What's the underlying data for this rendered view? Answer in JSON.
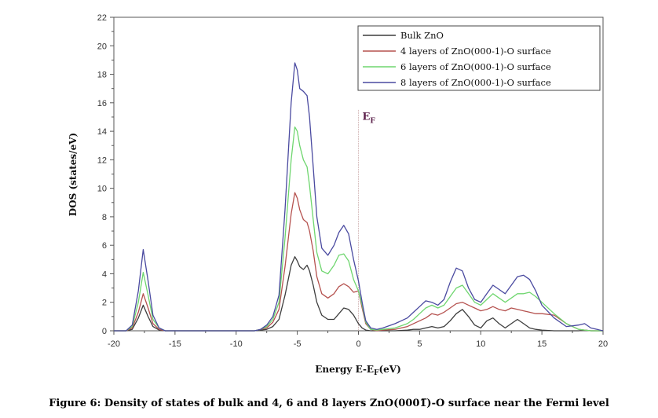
{
  "caption": "Figure 6: Density of states of bulk and 4, 6 and 8 layers ZnO(0001̅)-O surface near the Fermi level",
  "chart_data": {
    "type": "line",
    "xlabel": "Energy E-E",
    "xlabel_sub": "F",
    "xlabel_suffix": "(eV)",
    "ylabel": "DOS (states/eV)",
    "xlim": [
      -20,
      20
    ],
    "ylim": [
      0,
      22
    ],
    "x_ticks": [
      -20,
      -15,
      -10,
      -5,
      0,
      5,
      10,
      15,
      20
    ],
    "y_ticks": [
      0,
      2,
      4,
      6,
      8,
      10,
      12,
      14,
      16,
      18,
      20,
      22
    ],
    "grid": false,
    "legend_position": "top-right",
    "fermi_level": {
      "x": 0,
      "label": "E",
      "label_sub": "F",
      "color": "#d9c0c0"
    },
    "series": [
      {
        "name": "Bulk ZnO",
        "color": "#3d3d3d",
        "x": [
          -20,
          -19,
          -18.5,
          -18,
          -17.6,
          -17.2,
          -16.8,
          -16.3,
          -15.8,
          -15,
          -10,
          -8.5,
          -8,
          -7.5,
          -7,
          -6.5,
          -6,
          -5.5,
          -5.2,
          -5,
          -4.8,
          -4.5,
          -4.2,
          -4,
          -3.7,
          -3.4,
          -3,
          -2.5,
          -2,
          -1.6,
          -1.2,
          -0.8,
          -0.4,
          0,
          0.3,
          0.6,
          1,
          1.5,
          2,
          3,
          4,
          4.5,
          5,
          5.5,
          6,
          6.5,
          7,
          7.5,
          8,
          8.5,
          9,
          9.5,
          10,
          10.5,
          11,
          11.5,
          12,
          12.5,
          13,
          13.5,
          14,
          14.5,
          15,
          16,
          17,
          18,
          18.5,
          19,
          20
        ],
        "y": [
          0,
          0,
          0.1,
          0.9,
          1.8,
          1.0,
          0.3,
          0.05,
          0,
          0,
          0,
          0,
          0.05,
          0.1,
          0.3,
          0.8,
          2.5,
          4.6,
          5.2,
          4.9,
          4.5,
          4.3,
          4.6,
          4.2,
          3.2,
          2.0,
          1.1,
          0.8,
          0.8,
          1.2,
          1.6,
          1.5,
          1.1,
          0.5,
          0.2,
          0.05,
          0,
          0,
          0,
          0,
          0.05,
          0.1,
          0.1,
          0.2,
          0.3,
          0.2,
          0.3,
          0.7,
          1.2,
          1.5,
          1.0,
          0.4,
          0.2,
          0.7,
          0.9,
          0.5,
          0.2,
          0.5,
          0.8,
          0.5,
          0.2,
          0.1,
          0.05,
          0,
          0,
          0,
          0.05,
          0,
          0
        ]
      },
      {
        "name": "4 layers of ZnO(000-1)-O surface",
        "color": "#b5524f",
        "x": [
          -20,
          -19,
          -18.5,
          -18,
          -17.6,
          -17.2,
          -16.8,
          -16.3,
          -15.8,
          -15,
          -10,
          -8.5,
          -8,
          -7.5,
          -7,
          -6.5,
          -6,
          -5.5,
          -5.2,
          -5,
          -4.8,
          -4.5,
          -4.2,
          -4,
          -3.7,
          -3.4,
          -3,
          -2.5,
          -2,
          -1.6,
          -1.2,
          -0.8,
          -0.4,
          0,
          0.3,
          0.6,
          1,
          1.5,
          2,
          3,
          4,
          4.5,
          5,
          5.5,
          6,
          6.5,
          7,
          7.5,
          8,
          8.5,
          9,
          9.5,
          10,
          10.5,
          11,
          11.5,
          12,
          12.5,
          13,
          13.5,
          14,
          14.5,
          15,
          16,
          17,
          18,
          18.5,
          19,
          20
        ],
        "y": [
          0,
          0,
          0.2,
          1.3,
          2.6,
          1.6,
          0.5,
          0.1,
          0,
          0,
          0,
          0,
          0.1,
          0.2,
          0.6,
          1.5,
          4.5,
          8.2,
          9.7,
          9.3,
          8.5,
          7.8,
          7.6,
          7.0,
          5.6,
          3.8,
          2.6,
          2.3,
          2.6,
          3.1,
          3.3,
          3.1,
          2.7,
          2.8,
          1.6,
          0.5,
          0.1,
          0,
          0.05,
          0.1,
          0.3,
          0.5,
          0.7,
          0.9,
          1.2,
          1.1,
          1.3,
          1.6,
          1.9,
          2.0,
          1.8,
          1.6,
          1.4,
          1.5,
          1.7,
          1.5,
          1.4,
          1.6,
          1.5,
          1.4,
          1.3,
          1.2,
          1.2,
          1.1,
          0.5,
          0.1,
          0.05,
          0,
          0
        ]
      },
      {
        "name": "6 layers of ZnO(000-1)-O surface",
        "color": "#6fd66f",
        "x": [
          -20,
          -19,
          -18.5,
          -18,
          -17.6,
          -17.2,
          -16.8,
          -16.3,
          -15.8,
          -15,
          -10,
          -8.5,
          -8,
          -7.5,
          -7,
          -6.5,
          -6,
          -5.5,
          -5.2,
          -5,
          -4.8,
          -4.5,
          -4.2,
          -4,
          -3.7,
          -3.4,
          -3,
          -2.5,
          -2,
          -1.6,
          -1.2,
          -0.8,
          -0.4,
          0,
          0.3,
          0.6,
          1,
          1.5,
          2,
          3,
          4,
          4.5,
          5,
          5.5,
          6,
          6.5,
          7,
          7.5,
          8,
          8.5,
          9,
          9.5,
          10,
          10.5,
          11,
          11.5,
          12,
          12.5,
          13,
          13.5,
          14,
          14.5,
          15,
          16,
          17,
          18,
          18.5,
          19,
          20
        ],
        "y": [
          0,
          0,
          0.3,
          2.0,
          4.1,
          2.5,
          0.8,
          0.2,
          0,
          0,
          0,
          0,
          0.1,
          0.3,
          0.8,
          2.0,
          6.5,
          12.0,
          14.3,
          14.0,
          13.0,
          12.0,
          11.5,
          10.2,
          7.8,
          5.5,
          4.2,
          4.0,
          4.6,
          5.3,
          5.4,
          4.9,
          3.6,
          2.8,
          1.8,
          0.6,
          0.1,
          0.05,
          0.1,
          0.2,
          0.5,
          0.8,
          1.2,
          1.6,
          1.8,
          1.6,
          1.8,
          2.4,
          3.0,
          3.2,
          2.6,
          2.0,
          1.8,
          2.2,
          2.6,
          2.3,
          2.0,
          2.3,
          2.6,
          2.6,
          2.7,
          2.4,
          2.0,
          1.2,
          0.5,
          0.1,
          0.05,
          0,
          0
        ]
      },
      {
        "name": "8 layers of ZnO(000-1)-O surface",
        "color": "#4a4aa0",
        "x": [
          -20,
          -19,
          -18.5,
          -18,
          -17.6,
          -17.2,
          -16.8,
          -16.3,
          -15.8,
          -15,
          -10,
          -8.5,
          -8,
          -7.5,
          -7,
          -6.5,
          -6,
          -5.5,
          -5.2,
          -5,
          -4.8,
          -4.5,
          -4.2,
          -4,
          -3.7,
          -3.4,
          -3,
          -2.5,
          -2,
          -1.6,
          -1.2,
          -0.8,
          -0.4,
          0,
          0.3,
          0.6,
          1,
          1.5,
          2,
          3,
          4,
          4.5,
          5,
          5.5,
          6,
          6.5,
          7,
          7.5,
          8,
          8.5,
          9,
          9.5,
          10,
          10.5,
          11,
          11.5,
          12,
          12.5,
          13,
          13.5,
          14,
          14.5,
          15,
          16,
          17,
          18,
          18.5,
          19,
          20
        ],
        "y": [
          0,
          0,
          0.4,
          2.8,
          5.7,
          3.5,
          1.1,
          0.2,
          0,
          0,
          0,
          0,
          0.1,
          0.4,
          1.0,
          2.5,
          8.5,
          16.0,
          18.8,
          18.3,
          17.0,
          16.8,
          16.5,
          15.0,
          11.5,
          8.0,
          5.8,
          5.3,
          6.0,
          6.9,
          7.4,
          6.8,
          5.0,
          3.5,
          2.0,
          0.7,
          0.2,
          0.1,
          0.2,
          0.5,
          0.9,
          1.3,
          1.7,
          2.1,
          2.0,
          1.8,
          2.2,
          3.4,
          4.4,
          4.2,
          3.0,
          2.2,
          2.0,
          2.6,
          3.2,
          2.9,
          2.6,
          3.2,
          3.8,
          3.9,
          3.6,
          2.8,
          1.8,
          0.9,
          0.3,
          0.4,
          0.5,
          0.2,
          0
        ]
      }
    ]
  }
}
